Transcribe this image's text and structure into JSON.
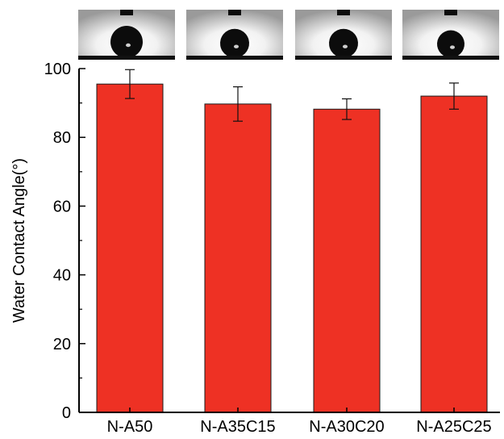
{
  "chart_data": {
    "type": "bar",
    "title": "",
    "xlabel": "",
    "ylabel": "Water Contact Angle(°)",
    "ylim": [
      0,
      100
    ],
    "yticks": [
      0,
      20,
      40,
      60,
      80,
      100
    ],
    "categories": [
      "N-A50",
      "N-A35C15",
      "N-A30C20",
      "N-A25C25"
    ],
    "values": [
      95.5,
      89.7,
      88.2,
      92.0
    ],
    "errors": [
      4.2,
      5.0,
      3.0,
      3.8
    ],
    "grid": false,
    "legend": "none",
    "insets": "water droplet photograph above each bar"
  },
  "colors": {
    "bar_fill": "#ee3124",
    "bar_stroke": "#1a1a1a",
    "axis": "#000000",
    "photo_background": "#d8d8d8",
    "droplet": "#0c0c0c",
    "substrate": "#111111"
  }
}
